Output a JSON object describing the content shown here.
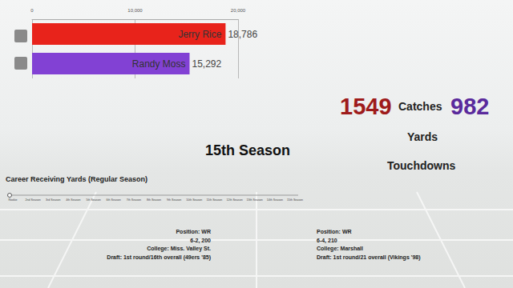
{
  "chart_data": {
    "type": "bar",
    "orientation": "horizontal",
    "categories": [
      "Jerry Rice",
      "Randy Moss"
    ],
    "values": [
      18786,
      15292
    ],
    "value_labels": [
      "18,786",
      "15,292"
    ],
    "colors": [
      "#e8231b",
      "#8241d4"
    ],
    "xlim": [
      0,
      20000
    ],
    "xticks": [
      0,
      {
        "value": 10000,
        "label": "10,000"
      },
      {
        "value": 20000,
        "label": "20,000"
      }
    ],
    "grid": true,
    "data_labels": true,
    "tick_labels": "x"
  },
  "season": "15th Season",
  "stats": {
    "left": {
      "text": "1549",
      "color": "#9e1b1b"
    },
    "middle": [
      "Catches",
      "Yards",
      "Touchdowns"
    ],
    "right": {
      "text": "982",
      "color": "#5a2a9c"
    }
  },
  "timeline": {
    "title": "Career Receiving Yards (Regular Season)",
    "labels": [
      "Rookie",
      "2nd Season",
      "3rd Season",
      "4th Season",
      "5th Season",
      "6th Season",
      "7th Season",
      "8th Season",
      "9th Season",
      "10th Season",
      "11th Season",
      "12th Season",
      "13th Season",
      "14th Season",
      "15th Season"
    ]
  },
  "players": [
    {
      "lines": [
        "Position: WR",
        "6-2, 200",
        "College: Miss. Valley St.",
        "Draft: 1st round/16th overall (49ers '85)"
      ]
    },
    {
      "lines": [
        "Position: WR",
        "6-4, 210",
        "College: Marshall",
        "Draft: 1st round/21 overall (Vikings '98)"
      ]
    }
  ]
}
